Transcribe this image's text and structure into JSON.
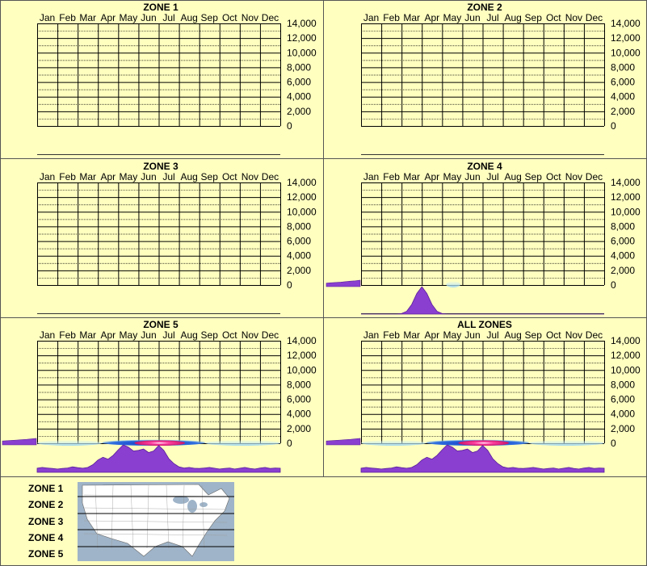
{
  "chart_data": [
    {
      "type": "heatmap",
      "title": "ZONE 1",
      "months": [
        "Jan",
        "Feb",
        "Mar",
        "Apr",
        "May",
        "Jun",
        "Jul",
        "Aug",
        "Sep",
        "Oct",
        "Nov",
        "Dec"
      ],
      "ylim": [
        0,
        14000
      ],
      "yticks": [
        "0",
        "2,000",
        "4,000",
        "6,000",
        "8,000",
        "10,000",
        "12,000",
        "14,000"
      ],
      "elevation_bands": [],
      "seasonal_profile": [],
      "side_profile": null
    },
    {
      "type": "heatmap",
      "title": "ZONE 2",
      "months": [
        "Jan",
        "Feb",
        "Mar",
        "Apr",
        "May",
        "Jun",
        "Jul",
        "Aug",
        "Sep",
        "Oct",
        "Nov",
        "Dec"
      ],
      "ylim": [
        0,
        14000
      ],
      "yticks": [
        "0",
        "2,000",
        "4,000",
        "6,000",
        "8,000",
        "10,000",
        "12,000",
        "14,000"
      ],
      "elevation_bands": [],
      "seasonal_profile": [],
      "side_profile": null
    },
    {
      "type": "heatmap",
      "title": "ZONE 3",
      "months": [
        "Jan",
        "Feb",
        "Mar",
        "Apr",
        "May",
        "Jun",
        "Jul",
        "Aug",
        "Sep",
        "Oct",
        "Nov",
        "Dec"
      ],
      "ylim": [
        0,
        14000
      ],
      "yticks": [
        "0",
        "2,000",
        "4,000",
        "6,000",
        "8,000",
        "10,000",
        "12,000",
        "14,000"
      ],
      "elevation_bands": [],
      "seasonal_profile": [],
      "side_profile": null
    },
    {
      "type": "heatmap",
      "title": "ZONE 4",
      "months": [
        "Jan",
        "Feb",
        "Mar",
        "Apr",
        "May",
        "Jun",
        "Jul",
        "Aug",
        "Sep",
        "Oct",
        "Nov",
        "Dec"
      ],
      "ylim": [
        0,
        14000
      ],
      "yticks": [
        "0",
        "2,000",
        "4,000",
        "6,000",
        "8,000",
        "10,000",
        "12,000",
        "14,000"
      ],
      "elevation_bands": [
        {
          "month_start": 4.2,
          "month_end": 4.9,
          "elev_low": 0,
          "elev_high": 500,
          "intensity": "low"
        }
      ],
      "seasonal_profile": [
        0,
        0,
        0,
        0,
        0,
        0,
        0,
        0,
        0.02,
        0.1,
        0.35,
        0.75,
        1,
        0.75,
        0.35,
        0.1,
        0.02,
        0,
        0,
        0,
        0,
        0,
        0,
        0,
        0,
        0,
        0,
        0,
        0,
        0,
        0,
        0,
        0,
        0,
        0,
        0,
        0,
        0,
        0,
        0,
        0,
        0,
        0,
        0,
        0,
        0,
        0,
        0,
        0
      ],
      "side_profile": [
        0.55,
        0.6,
        0.65,
        0.7,
        0.78,
        0.85,
        0.9,
        1
      ]
    },
    {
      "type": "heatmap",
      "title": "ZONE 5",
      "months": [
        "Jan",
        "Feb",
        "Mar",
        "Apr",
        "May",
        "Jun",
        "Jul",
        "Aug",
        "Sep",
        "Oct",
        "Nov",
        "Dec"
      ],
      "ylim": [
        0,
        14000
      ],
      "yticks": [
        "0",
        "2,000",
        "4,000",
        "6,000",
        "8,000",
        "10,000",
        "12,000",
        "14,000"
      ],
      "elevation_bands": [
        {
          "month_start": 0,
          "month_end": 3.2,
          "elev_low": 0,
          "elev_high": 400,
          "intensity": "low"
        },
        {
          "month_start": 3.2,
          "month_end": 8.3,
          "elev_low": 0,
          "elev_high": 500,
          "intensity": "medium"
        },
        {
          "month_start": 4.8,
          "month_end": 7.3,
          "elev_low": 0,
          "elev_high": 400,
          "intensity": "high"
        },
        {
          "month_start": 8.3,
          "month_end": 12,
          "elev_low": 0,
          "elev_high": 400,
          "intensity": "low"
        }
      ],
      "seasonal_profile": [
        0.15,
        0.18,
        0.16,
        0.14,
        0.12,
        0.14,
        0.16,
        0.2,
        0.17,
        0.15,
        0.18,
        0.28,
        0.45,
        0.55,
        0.48,
        0.62,
        0.82,
        1.0,
        0.92,
        0.78,
        0.8,
        0.85,
        0.72,
        0.78,
        0.98,
        0.8,
        0.5,
        0.32,
        0.2,
        0.16,
        0.18,
        0.15,
        0.14,
        0.16,
        0.18,
        0.15,
        0.12,
        0.14,
        0.16,
        0.12,
        0.15,
        0.18,
        0.14,
        0.12,
        0.16,
        0.18,
        0.14,
        0.16,
        0.15
      ],
      "side_profile": [
        0.6,
        0.65,
        0.7,
        0.75,
        0.8,
        0.85,
        0.92,
        1
      ]
    },
    {
      "type": "heatmap",
      "title": "ALL ZONES",
      "months": [
        "Jan",
        "Feb",
        "Mar",
        "Apr",
        "May",
        "Jun",
        "Jul",
        "Aug",
        "Sep",
        "Oct",
        "Nov",
        "Dec"
      ],
      "ylim": [
        0,
        14000
      ],
      "yticks": [
        "0",
        "2,000",
        "4,000",
        "6,000",
        "8,000",
        "10,000",
        "12,000",
        "14,000"
      ],
      "elevation_bands": [
        {
          "month_start": 0,
          "month_end": 3.2,
          "elev_low": 0,
          "elev_high": 400,
          "intensity": "low"
        },
        {
          "month_start": 3.2,
          "month_end": 8.3,
          "elev_low": 0,
          "elev_high": 500,
          "intensity": "medium"
        },
        {
          "month_start": 4.8,
          "month_end": 7.3,
          "elev_low": 0,
          "elev_high": 400,
          "intensity": "high"
        },
        {
          "month_start": 8.3,
          "month_end": 12,
          "elev_low": 0,
          "elev_high": 400,
          "intensity": "low"
        }
      ],
      "seasonal_profile": [
        0.15,
        0.18,
        0.16,
        0.14,
        0.12,
        0.14,
        0.16,
        0.2,
        0.17,
        0.15,
        0.18,
        0.28,
        0.45,
        0.55,
        0.48,
        0.62,
        0.82,
        1.0,
        0.92,
        0.78,
        0.8,
        0.85,
        0.72,
        0.78,
        0.98,
        0.8,
        0.5,
        0.32,
        0.2,
        0.16,
        0.18,
        0.15,
        0.14,
        0.16,
        0.18,
        0.15,
        0.12,
        0.14,
        0.16,
        0.12,
        0.15,
        0.18,
        0.14,
        0.12,
        0.16,
        0.18,
        0.14,
        0.16,
        0.15
      ],
      "side_profile": [
        0.6,
        0.65,
        0.7,
        0.75,
        0.8,
        0.85,
        0.92,
        1
      ]
    }
  ],
  "legend": {
    "zones": [
      "ZONE 1",
      "ZONE 2",
      "ZONE 3",
      "ZONE 4",
      "ZONE 5"
    ]
  },
  "colors": {
    "background": "#ffffc0",
    "grid": "#000000",
    "profile": "#8a3fd0",
    "profile_edge": "#5a1f9a",
    "band_low": "#9fd8f0",
    "band_medium": "#1030c0",
    "band_high": "#e0207a",
    "map_water": "#9fb4c8",
    "map_land": "#ffffff"
  }
}
